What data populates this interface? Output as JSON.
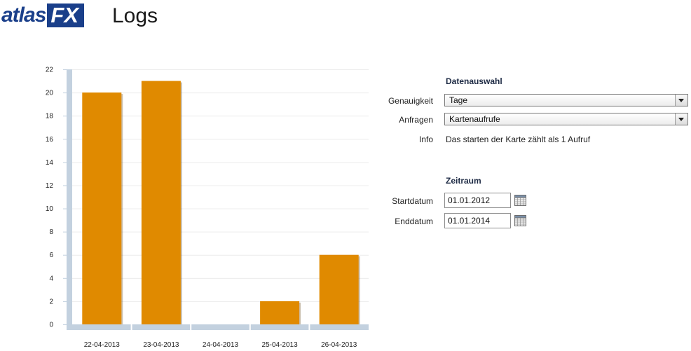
{
  "header": {
    "logo_atlas": "atlas",
    "logo_fx": "FX",
    "title": "Logs"
  },
  "panel": {
    "data_section_title": "Datenauswahl",
    "precision_label": "Genauigkeit",
    "precision_value": "Tage",
    "requests_label": "Anfragen",
    "requests_value": "Kartenaufrufe",
    "info_label": "Info",
    "info_text": "Das starten der Karte zählt als 1 Aufruf",
    "range_section_title": "Zeitraum",
    "start_label": "Startdatum",
    "start_value": "01.01.2012",
    "end_label": "Enddatum",
    "end_value": "01.01.2014"
  },
  "icons": {
    "dropdown": "chevron-down-icon",
    "calendar": "calendar-icon"
  },
  "colors": {
    "bar": "#e08a00",
    "bar_shadow": "#6b4a1a",
    "axis": "#c3d1df",
    "grid": "#ececec",
    "brand": "#1a3f8a"
  },
  "chart_data": {
    "type": "bar",
    "categories": [
      "22-04-2013",
      "23-04-2013",
      "24-04-2013",
      "25-04-2013",
      "26-04-2013"
    ],
    "values": [
      20,
      21,
      0,
      2,
      6
    ],
    "ylim": [
      0,
      22
    ],
    "yticks": [
      0,
      2,
      4,
      6,
      8,
      10,
      12,
      14,
      16,
      18,
      20,
      22
    ],
    "title": "",
    "xlabel": "",
    "ylabel": "",
    "grid": true,
    "legend": "none"
  }
}
